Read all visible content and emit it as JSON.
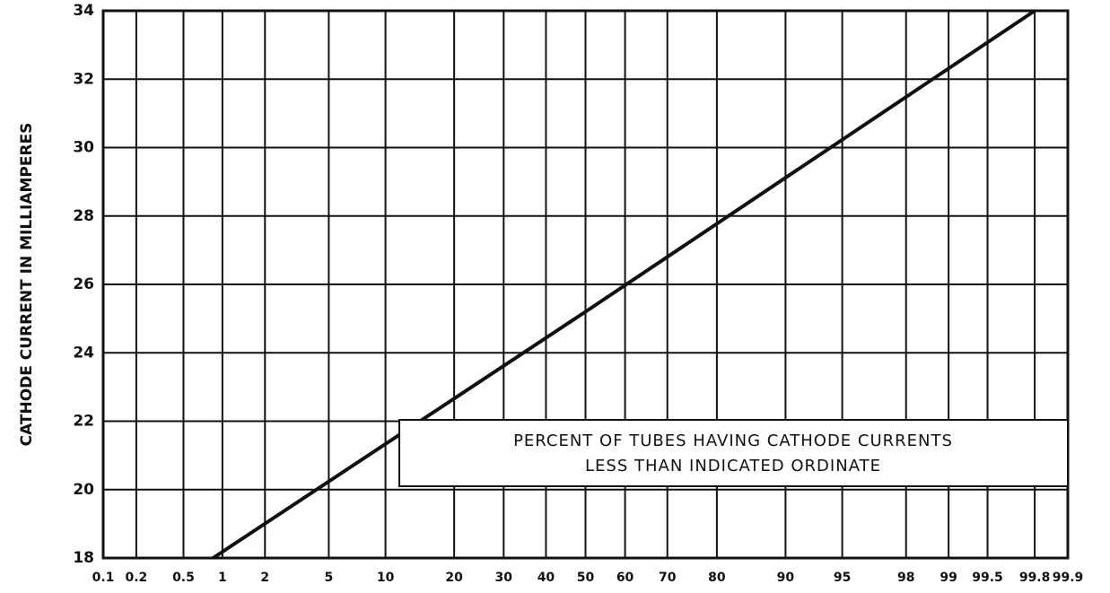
{
  "chart_data": {
    "type": "line",
    "y_label": "CATHODE CURRENT IN MILLIAMPERES",
    "annotation": [
      "PERCENT OF TUBES HAVING CATHODE CURRENTS",
      "LESS THAN INDICATED ORDINATE"
    ],
    "x_scale": "probability",
    "x": [
      0.85,
      50,
      99.8
    ],
    "series": [
      {
        "color": "#111111",
        "values": [
          18,
          25.2,
          34
        ]
      }
    ],
    "xlim": [
      0.1,
      99.9
    ],
    "xticks": [
      0.1,
      0.2,
      0.5,
      1,
      2,
      5,
      10,
      20,
      30,
      40,
      50,
      60,
      70,
      80,
      90,
      95,
      98,
      99,
      99.5,
      99.8,
      99.9
    ],
    "ylim": [
      18,
      34
    ],
    "yticks": [
      18,
      20,
      22,
      24,
      26,
      28,
      30,
      32,
      34
    ],
    "grid": true
  }
}
